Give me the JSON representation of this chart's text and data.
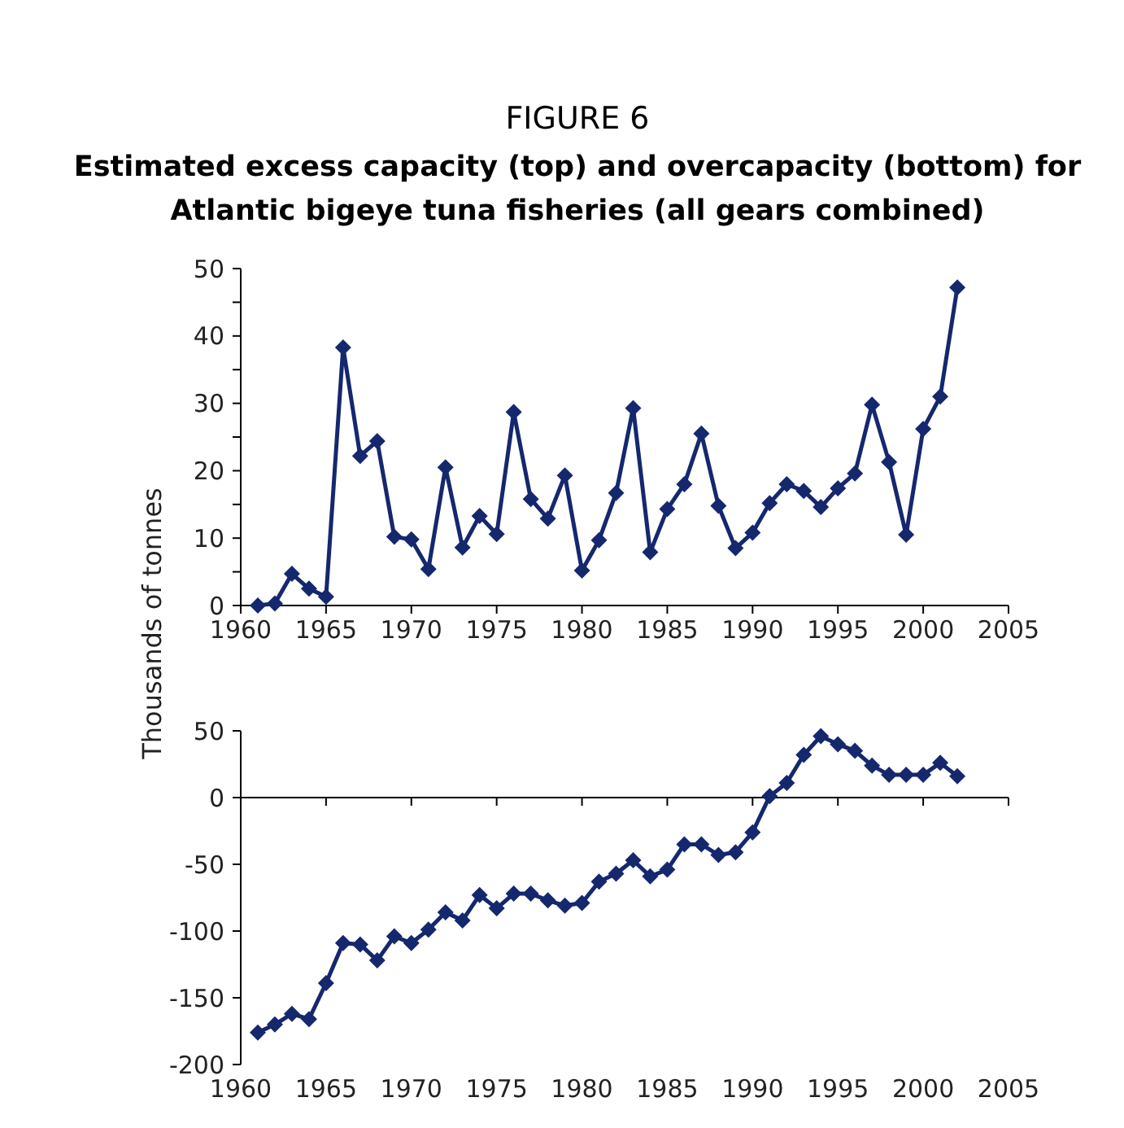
{
  "chart_data": [
    {
      "type": "line",
      "title": "FIGURE 6",
      "subtitle": "Estimated excess capacity (top) and overcapacity (bottom) for Atlantic bigeye tuna fisheries (all gears combined)",
      "ylabel": "Thousands of tonnes",
      "x": [
        1961,
        1962,
        1963,
        1964,
        1965,
        1966,
        1967,
        1968,
        1969,
        1970,
        1971,
        1972,
        1973,
        1974,
        1975,
        1976,
        1977,
        1978,
        1979,
        1980,
        1981,
        1982,
        1983,
        1984,
        1985,
        1986,
        1987,
        1988,
        1989,
        1990,
        1991,
        1992,
        1993,
        1994,
        1995,
        1996,
        1997,
        1998,
        1999,
        2000,
        2001,
        2002
      ],
      "series": [
        {
          "color": "#15286e",
          "values": [
            0,
            0.3,
            4.7,
            2.5,
            1.3,
            38.3,
            22.2,
            24.4,
            10.2,
            9.8,
            5.4,
            20.5,
            8.6,
            13.3,
            10.6,
            28.7,
            15.8,
            12.9,
            19.3,
            5.2,
            9.7,
            16.7,
            29.3,
            7.9,
            14.3,
            18,
            25.5,
            14.8,
            8.5,
            10.8,
            15.2,
            18,
            17,
            14.6,
            17.4,
            19.6,
            29.8,
            21.3,
            10.5,
            26.2,
            31,
            47.2
          ]
        }
      ],
      "xlim": [
        1960,
        2005
      ],
      "xticks": [
        1960,
        1965,
        1970,
        1975,
        1980,
        1985,
        1990,
        1995,
        2000,
        2005
      ],
      "ylim": [
        0,
        50
      ],
      "yticks": [
        0,
        {
          "value": 5,
          "label": null
        },
        10,
        {
          "value": 15,
          "label": null
        },
        20,
        {
          "value": 25,
          "label": null
        },
        30,
        {
          "value": 35,
          "label": null
        },
        40,
        {
          "value": 45,
          "label": null
        },
        50
      ],
      "grid": false,
      "marker": "diamond",
      "line_style": "solid"
    },
    {
      "type": "line",
      "x": [
        1961,
        1962,
        1963,
        1964,
        1965,
        1966,
        1967,
        1968,
        1969,
        1970,
        1971,
        1972,
        1973,
        1974,
        1975,
        1976,
        1977,
        1978,
        1979,
        1980,
        1981,
        1982,
        1983,
        1984,
        1985,
        1986,
        1987,
        1988,
        1989,
        1990,
        1991,
        1992,
        1993,
        1994,
        1995,
        1996,
        1997,
        1998,
        1999,
        2000,
        2001,
        2002
      ],
      "series": [
        {
          "color": "#15286e",
          "values": [
            -176,
            -170,
            -162,
            -166,
            -139,
            -109,
            -110,
            -122,
            -104,
            -109,
            -99,
            -86,
            -92,
            -73,
            -83,
            -72,
            -72,
            -77,
            -81,
            -79,
            -63,
            -57,
            -47,
            -59,
            -54,
            -35,
            -35,
            -43,
            -41,
            -26,
            1,
            11,
            32,
            46,
            40,
            35,
            24,
            17,
            17,
            17,
            26,
            16
          ]
        }
      ],
      "xlim": [
        1960,
        2005
      ],
      "xticks": [
        1960,
        1965,
        1970,
        1975,
        1980,
        1985,
        1990,
        1995,
        2000,
        2005
      ],
      "ylim": [
        -200,
        50
      ],
      "yticks": [
        -200,
        -150,
        -100,
        -50,
        0,
        50
      ],
      "marker": "diamond",
      "line_style": "solid"
    }
  ]
}
